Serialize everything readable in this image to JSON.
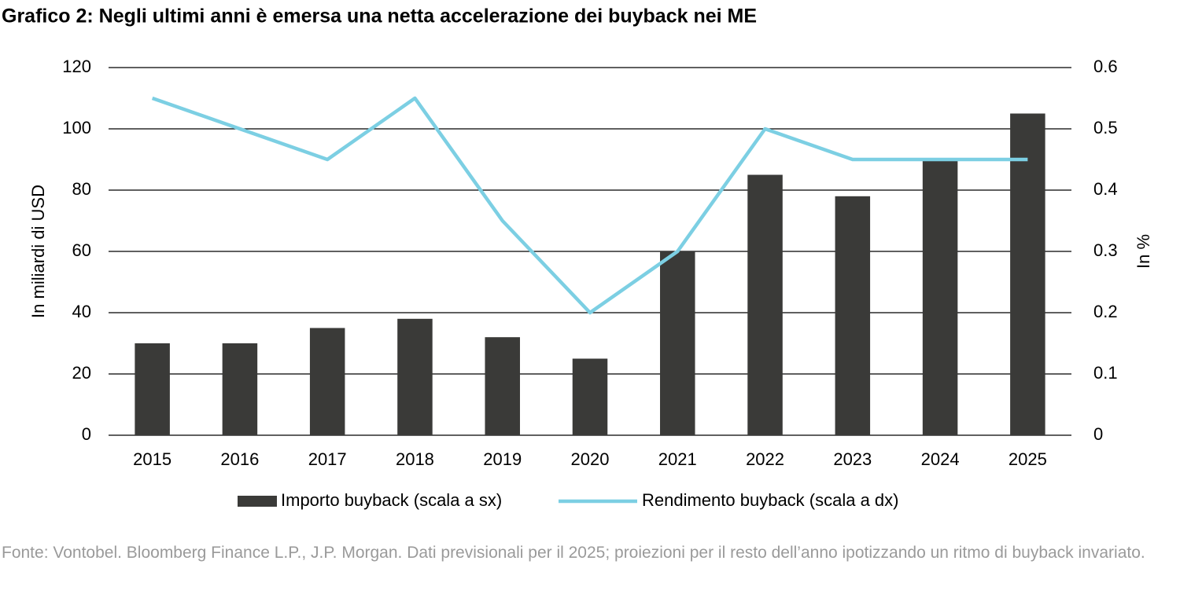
{
  "chart_data": {
    "type": "bar",
    "title": "Grafico 2: Negli ultimi anni è emersa una netta accelerazione dei buyback nei ME",
    "y_label": "In miliardi di USD",
    "y2_label": "In %",
    "categories": [
      "2015",
      "2016",
      "2017",
      "2018",
      "2019",
      "2020",
      "2021",
      "2022",
      "2023",
      "2024",
      "2025"
    ],
    "series": [
      {
        "name": "Importo buyback (scala a sx)",
        "type": "bar",
        "color": "#3a3a38",
        "values": [
          30,
          30,
          35,
          38,
          32,
          25,
          60,
          85,
          78,
          90,
          105
        ]
      },
      {
        "name": "Rendimento buyback (scala a dx)",
        "type": "line",
        "axis": "y2",
        "color": "#7ccfe3",
        "values": [
          0.55,
          0.5,
          0.45,
          0.55,
          0.35,
          0.2,
          0.3,
          0.5,
          0.45,
          0.45,
          0.45
        ]
      }
    ],
    "ylim": [
      0,
      120
    ],
    "yticks": [
      0,
      20,
      40,
      60,
      80,
      100,
      120
    ],
    "y2lim": [
      0,
      0.6
    ],
    "y2ticks": [
      0,
      0.1,
      0.2,
      0.3,
      0.4,
      0.5,
      0.6
    ],
    "grid": true,
    "legend": "bottom",
    "note": "Fonte: Vontobel. Bloomberg Finance L.P., J.P. Morgan. Dati previsionali per il 2025; proiezioni per il resto dell’anno ipotizzando un ritmo di buyback invariato."
  }
}
